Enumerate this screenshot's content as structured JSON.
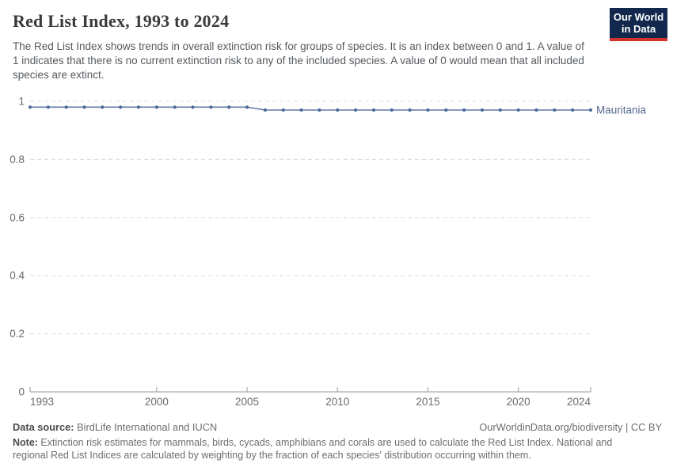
{
  "header": {
    "title": "Red List Index, 1993 to 2024",
    "subtitle": "The Red List Index shows trends in overall extinction risk for groups of species. It is an index between 0 and 1. A value of 1 indicates that there is no current extinction risk to any of the included species. A value of 0 would mean that all included species are extinct."
  },
  "logo": {
    "line1": "Our World",
    "line2": "in Data",
    "bg_color": "#12294d",
    "accent_color": "#d0342c"
  },
  "chart_data": {
    "type": "line",
    "title": "Red List Index, 1993 to 2024",
    "x": [
      1993,
      1994,
      1995,
      1996,
      1997,
      1998,
      1999,
      2000,
      2001,
      2002,
      2003,
      2004,
      2005,
      2006,
      2007,
      2008,
      2009,
      2010,
      2011,
      2012,
      2013,
      2014,
      2015,
      2016,
      2017,
      2018,
      2019,
      2020,
      2021,
      2022,
      2023,
      2024
    ],
    "series": [
      {
        "name": "Mauritania",
        "color": "#4c6a9c",
        "line_color": "#6379a8",
        "values": [
          0.98,
          0.98,
          0.98,
          0.98,
          0.98,
          0.98,
          0.98,
          0.98,
          0.98,
          0.98,
          0.98,
          0.98,
          0.98,
          0.97,
          0.97,
          0.97,
          0.97,
          0.97,
          0.97,
          0.97,
          0.97,
          0.97,
          0.97,
          0.97,
          0.97,
          0.97,
          0.97,
          0.97,
          0.97,
          0.97,
          0.97,
          0.97
        ]
      }
    ],
    "xlabel": "",
    "ylabel": "",
    "ylim": [
      0,
      1
    ],
    "yticks": [
      0,
      0.2,
      0.4,
      0.6,
      0.8,
      1
    ],
    "ytick_labels": [
      "0",
      "0.2",
      "0.4",
      "0.6",
      "0.8",
      "1"
    ],
    "xticks": [
      1993,
      2000,
      2005,
      2010,
      2015,
      2020,
      2024
    ],
    "grid": "horizontal-dashed",
    "legend_position": "end-of-line-label",
    "colors": {
      "grid": "#dcdcdc",
      "axis": "#9a9a9a",
      "tick_label": "#6b6b6b",
      "entity_label": "#54688e"
    }
  },
  "footer": {
    "datasource_label": "Data source:",
    "datasource_value": " BirdLife International and IUCN",
    "link": "OurWorldinData.org/biodiversity | CC BY",
    "note_label": "Note:",
    "note_value": " Extinction risk estimates for mammals, birds, cycads, amphibians and corals are used to calculate the Red List Index. National and regional Red List Indices are calculated by weighting by the fraction of each species' distribution occurring within them."
  }
}
